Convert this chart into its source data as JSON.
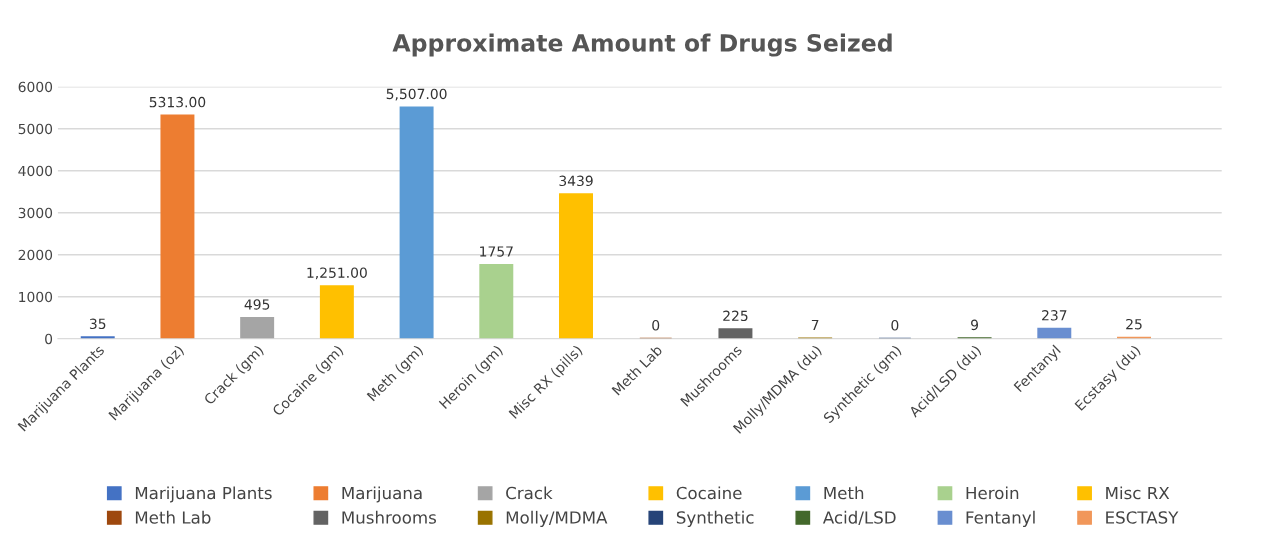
{
  "chart_data": {
    "type": "bar",
    "title": "Approximate Amount of Drugs Seized",
    "categories": [
      "Marijuana Plants",
      "Marijuana (oz)",
      "Crack (gm)",
      "Cocaine (gm)",
      "Meth (gm)",
      "Heroin (gm)",
      "Misc RX (pills)",
      "Meth Lab",
      "Mushrooms",
      "Molly/MDMA (du)",
      "Synthetic (gm)",
      "Acid/LSD (du)",
      "Fentanyl",
      "Ecstasy (du)"
    ],
    "series": [
      {
        "name": "Marijuana Plants",
        "color": "#4472c4",
        "values": [
          35,
          null,
          null,
          null,
          null,
          null,
          null,
          null,
          null,
          null,
          null,
          null,
          null,
          null
        ],
        "value_labels": [
          "35",
          null,
          null,
          null,
          null,
          null,
          null,
          null,
          null,
          null,
          null,
          null,
          null,
          null
        ]
      },
      {
        "name": "Marijuana",
        "color": "#ed7d31",
        "values": [
          null,
          5313,
          null,
          null,
          null,
          null,
          null,
          null,
          null,
          null,
          null,
          null,
          null,
          null
        ],
        "value_labels": [
          null,
          "5313.00",
          null,
          null,
          null,
          null,
          null,
          null,
          null,
          null,
          null,
          null,
          null,
          null
        ]
      },
      {
        "name": "Crack",
        "color": "#a5a5a5",
        "values": [
          null,
          null,
          495,
          null,
          null,
          null,
          null,
          null,
          null,
          null,
          null,
          null,
          null,
          null
        ],
        "value_labels": [
          null,
          null,
          "495",
          null,
          null,
          null,
          null,
          null,
          null,
          null,
          null,
          null,
          null,
          null
        ]
      },
      {
        "name": "Cocaine",
        "color": "#ffc000",
        "values": [
          null,
          null,
          null,
          1251,
          null,
          null,
          null,
          null,
          null,
          null,
          null,
          null,
          null,
          null
        ],
        "value_labels": [
          null,
          null,
          null,
          "1,251.00",
          null,
          null,
          null,
          null,
          null,
          null,
          null,
          null,
          null,
          null
        ]
      },
      {
        "name": "Meth",
        "color": "#5b9bd5",
        "values": [
          null,
          null,
          null,
          null,
          5507,
          null,
          null,
          null,
          null,
          null,
          null,
          null,
          null,
          null
        ],
        "value_labels": [
          null,
          null,
          null,
          null,
          "5,507.00",
          null,
          null,
          null,
          null,
          null,
          null,
          null,
          null,
          null
        ]
      },
      {
        "name": "Heroin",
        "color": "#a9d18e",
        "values": [
          null,
          null,
          null,
          null,
          null,
          1757,
          null,
          null,
          null,
          null,
          null,
          null,
          null,
          null
        ],
        "value_labels": [
          null,
          null,
          null,
          null,
          null,
          "1757",
          null,
          null,
          null,
          null,
          null,
          null,
          null,
          null
        ]
      },
      {
        "name": "Misc RX",
        "color": "#ffc000",
        "values": [
          null,
          null,
          null,
          null,
          null,
          null,
          3439,
          null,
          null,
          null,
          null,
          null,
          null,
          null
        ],
        "value_labels": [
          null,
          null,
          null,
          null,
          null,
          null,
          "3439",
          null,
          null,
          null,
          null,
          null,
          null,
          null
        ]
      },
      {
        "name": "Meth Lab",
        "color": "#9e480e",
        "values": [
          null,
          null,
          null,
          null,
          null,
          null,
          null,
          0,
          null,
          null,
          null,
          null,
          null,
          null
        ],
        "value_labels": [
          null,
          null,
          null,
          null,
          null,
          null,
          null,
          "0",
          null,
          null,
          null,
          null,
          null,
          null
        ]
      },
      {
        "name": "Mushrooms",
        "color": "#636363",
        "values": [
          null,
          null,
          null,
          null,
          null,
          null,
          null,
          null,
          225,
          null,
          null,
          null,
          null,
          null
        ],
        "value_labels": [
          null,
          null,
          null,
          null,
          null,
          null,
          null,
          null,
          "225",
          null,
          null,
          null,
          null,
          null
        ]
      },
      {
        "name": "Molly/MDMA",
        "color": "#997300",
        "values": [
          null,
          null,
          null,
          null,
          null,
          null,
          null,
          null,
          null,
          7,
          null,
          null,
          null,
          null
        ],
        "value_labels": [
          null,
          null,
          null,
          null,
          null,
          null,
          null,
          null,
          null,
          "7",
          null,
          null,
          null,
          null
        ]
      },
      {
        "name": "Synthetic",
        "color": "#264478",
        "values": [
          null,
          null,
          null,
          null,
          null,
          null,
          null,
          null,
          null,
          null,
          0,
          null,
          null,
          null
        ],
        "value_labels": [
          null,
          null,
          null,
          null,
          null,
          null,
          null,
          null,
          null,
          null,
          "0",
          null,
          null,
          null
        ]
      },
      {
        "name": "Acid/LSD",
        "color": "#43682b",
        "values": [
          null,
          null,
          null,
          null,
          null,
          null,
          null,
          null,
          null,
          null,
          null,
          9,
          null,
          null
        ],
        "value_labels": [
          null,
          null,
          null,
          null,
          null,
          null,
          null,
          null,
          null,
          null,
          null,
          "9",
          null,
          null
        ]
      },
      {
        "name": "Fentanyl",
        "color": "#698ed0",
        "values": [
          null,
          null,
          null,
          null,
          null,
          null,
          null,
          null,
          null,
          null,
          null,
          null,
          237,
          null
        ],
        "value_labels": [
          null,
          null,
          null,
          null,
          null,
          null,
          null,
          null,
          null,
          null,
          null,
          null,
          "237",
          null
        ]
      },
      {
        "name": "ESCTASY",
        "color": "#f1975a",
        "values": [
          null,
          null,
          null,
          null,
          null,
          null,
          null,
          null,
          null,
          null,
          null,
          null,
          null,
          25
        ],
        "value_labels": [
          null,
          null,
          null,
          null,
          null,
          null,
          null,
          null,
          null,
          null,
          null,
          null,
          null,
          "25"
        ]
      }
    ],
    "ylim": [
      0,
      6000
    ],
    "yticks": [
      0,
      1000,
      2000,
      3000,
      4000,
      5000,
      6000
    ],
    "grid": "y",
    "legend": "bottom"
  }
}
